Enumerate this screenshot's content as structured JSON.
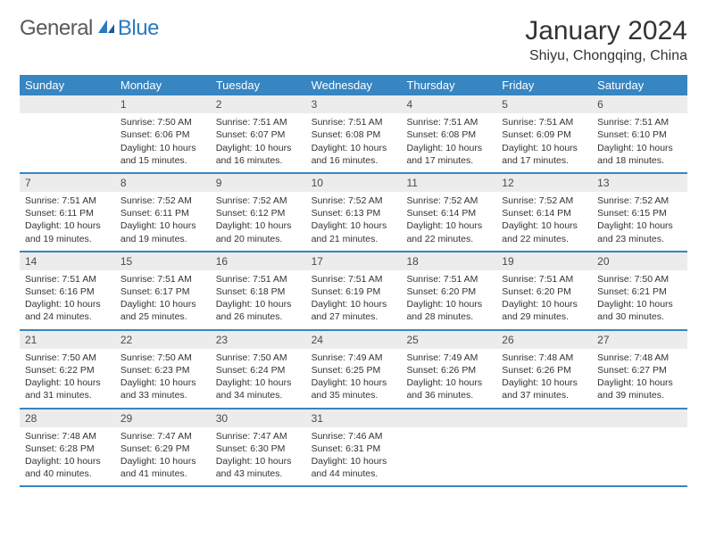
{
  "logo": {
    "text1": "General",
    "text2": "Blue"
  },
  "title": "January 2024",
  "location": "Shiyu, Chongqing, China",
  "colors": {
    "header_bg": "#3785c1",
    "header_text": "#ffffff",
    "daynum_bg": "#ececec",
    "text": "#333333",
    "logo_gray": "#5a5a5a",
    "logo_blue": "#2b7bbf"
  },
  "day_names": [
    "Sunday",
    "Monday",
    "Tuesday",
    "Wednesday",
    "Thursday",
    "Friday",
    "Saturday"
  ],
  "weeks": [
    [
      null,
      {
        "n": "1",
        "sr": "7:50 AM",
        "ss": "6:06 PM",
        "dl": "10 hours and 15 minutes."
      },
      {
        "n": "2",
        "sr": "7:51 AM",
        "ss": "6:07 PM",
        "dl": "10 hours and 16 minutes."
      },
      {
        "n": "3",
        "sr": "7:51 AM",
        "ss": "6:08 PM",
        "dl": "10 hours and 16 minutes."
      },
      {
        "n": "4",
        "sr": "7:51 AM",
        "ss": "6:08 PM",
        "dl": "10 hours and 17 minutes."
      },
      {
        "n": "5",
        "sr": "7:51 AM",
        "ss": "6:09 PM",
        "dl": "10 hours and 17 minutes."
      },
      {
        "n": "6",
        "sr": "7:51 AM",
        "ss": "6:10 PM",
        "dl": "10 hours and 18 minutes."
      }
    ],
    [
      {
        "n": "7",
        "sr": "7:51 AM",
        "ss": "6:11 PM",
        "dl": "10 hours and 19 minutes."
      },
      {
        "n": "8",
        "sr": "7:52 AM",
        "ss": "6:11 PM",
        "dl": "10 hours and 19 minutes."
      },
      {
        "n": "9",
        "sr": "7:52 AM",
        "ss": "6:12 PM",
        "dl": "10 hours and 20 minutes."
      },
      {
        "n": "10",
        "sr": "7:52 AM",
        "ss": "6:13 PM",
        "dl": "10 hours and 21 minutes."
      },
      {
        "n": "11",
        "sr": "7:52 AM",
        "ss": "6:14 PM",
        "dl": "10 hours and 22 minutes."
      },
      {
        "n": "12",
        "sr": "7:52 AM",
        "ss": "6:14 PM",
        "dl": "10 hours and 22 minutes."
      },
      {
        "n": "13",
        "sr": "7:52 AM",
        "ss": "6:15 PM",
        "dl": "10 hours and 23 minutes."
      }
    ],
    [
      {
        "n": "14",
        "sr": "7:51 AM",
        "ss": "6:16 PM",
        "dl": "10 hours and 24 minutes."
      },
      {
        "n": "15",
        "sr": "7:51 AM",
        "ss": "6:17 PM",
        "dl": "10 hours and 25 minutes."
      },
      {
        "n": "16",
        "sr": "7:51 AM",
        "ss": "6:18 PM",
        "dl": "10 hours and 26 minutes."
      },
      {
        "n": "17",
        "sr": "7:51 AM",
        "ss": "6:19 PM",
        "dl": "10 hours and 27 minutes."
      },
      {
        "n": "18",
        "sr": "7:51 AM",
        "ss": "6:20 PM",
        "dl": "10 hours and 28 minutes."
      },
      {
        "n": "19",
        "sr": "7:51 AM",
        "ss": "6:20 PM",
        "dl": "10 hours and 29 minutes."
      },
      {
        "n": "20",
        "sr": "7:50 AM",
        "ss": "6:21 PM",
        "dl": "10 hours and 30 minutes."
      }
    ],
    [
      {
        "n": "21",
        "sr": "7:50 AM",
        "ss": "6:22 PM",
        "dl": "10 hours and 31 minutes."
      },
      {
        "n": "22",
        "sr": "7:50 AM",
        "ss": "6:23 PM",
        "dl": "10 hours and 33 minutes."
      },
      {
        "n": "23",
        "sr": "7:50 AM",
        "ss": "6:24 PM",
        "dl": "10 hours and 34 minutes."
      },
      {
        "n": "24",
        "sr": "7:49 AM",
        "ss": "6:25 PM",
        "dl": "10 hours and 35 minutes."
      },
      {
        "n": "25",
        "sr": "7:49 AM",
        "ss": "6:26 PM",
        "dl": "10 hours and 36 minutes."
      },
      {
        "n": "26",
        "sr": "7:48 AM",
        "ss": "6:26 PM",
        "dl": "10 hours and 37 minutes."
      },
      {
        "n": "27",
        "sr": "7:48 AM",
        "ss": "6:27 PM",
        "dl": "10 hours and 39 minutes."
      }
    ],
    [
      {
        "n": "28",
        "sr": "7:48 AM",
        "ss": "6:28 PM",
        "dl": "10 hours and 40 minutes."
      },
      {
        "n": "29",
        "sr": "7:47 AM",
        "ss": "6:29 PM",
        "dl": "10 hours and 41 minutes."
      },
      {
        "n": "30",
        "sr": "7:47 AM",
        "ss": "6:30 PM",
        "dl": "10 hours and 43 minutes."
      },
      {
        "n": "31",
        "sr": "7:46 AM",
        "ss": "6:31 PM",
        "dl": "10 hours and 44 minutes."
      },
      null,
      null,
      null
    ]
  ],
  "labels": {
    "sunrise": "Sunrise: ",
    "sunset": "Sunset: ",
    "daylight": "Daylight: "
  }
}
